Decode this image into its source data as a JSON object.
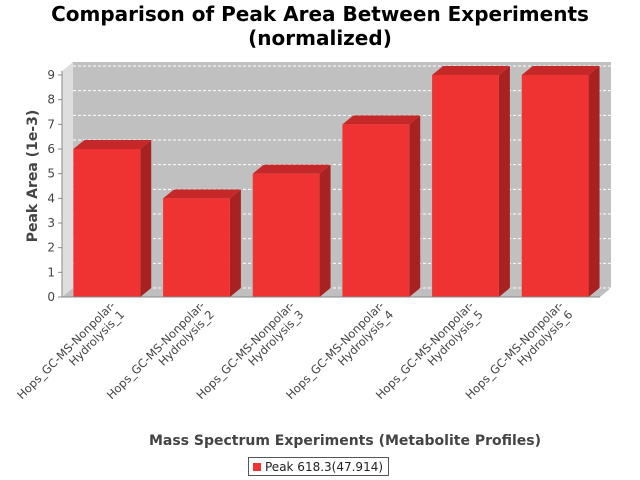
{
  "chart_data": {
    "type": "bar",
    "title_lines": [
      "Comparison of Peak Area Between Experiments",
      "(normalized)"
    ],
    "xlabel": "Mass Spectrum Experiments (Metabolite Profiles)",
    "ylabel": "Peak Area (1e-3)",
    "categories": [
      [
        "Hops_GC-MS-Nonpolar-",
        "Hydrolysis_1"
      ],
      [
        "Hops_GC-MS-Nonpolar-",
        "Hydrolysis_2"
      ],
      [
        "Hops_GC-MS-Nonpolar-",
        "Hydrolysis_3"
      ],
      [
        "Hops_GC-MS-Nonpolar-",
        "Hydrolysis_4"
      ],
      [
        "Hops_GC-MS-Nonpolar-",
        "Hydrolysis_5"
      ],
      [
        "Hops_GC-MS-Nonpolar-",
        "Hydrolysis_6"
      ]
    ],
    "series": [
      {
        "name": "Peak 618.3(47.914)",
        "values": [
          6,
          4,
          5,
          7,
          9,
          9
        ]
      }
    ],
    "ylim": [
      0,
      9
    ],
    "yticks": [
      0,
      1,
      2,
      3,
      4,
      5,
      6,
      7,
      8,
      9
    ],
    "grid": true,
    "legend_position": "bottom",
    "style": "3d",
    "colors": {
      "bar_front": "#ef3333",
      "bar_top": "#c42828",
      "bar_side": "#a92222",
      "plot_bg": "#c0c0c0",
      "wall": "#dedede",
      "floor": "#bfbfbf",
      "grid": "#ffffff"
    }
  }
}
